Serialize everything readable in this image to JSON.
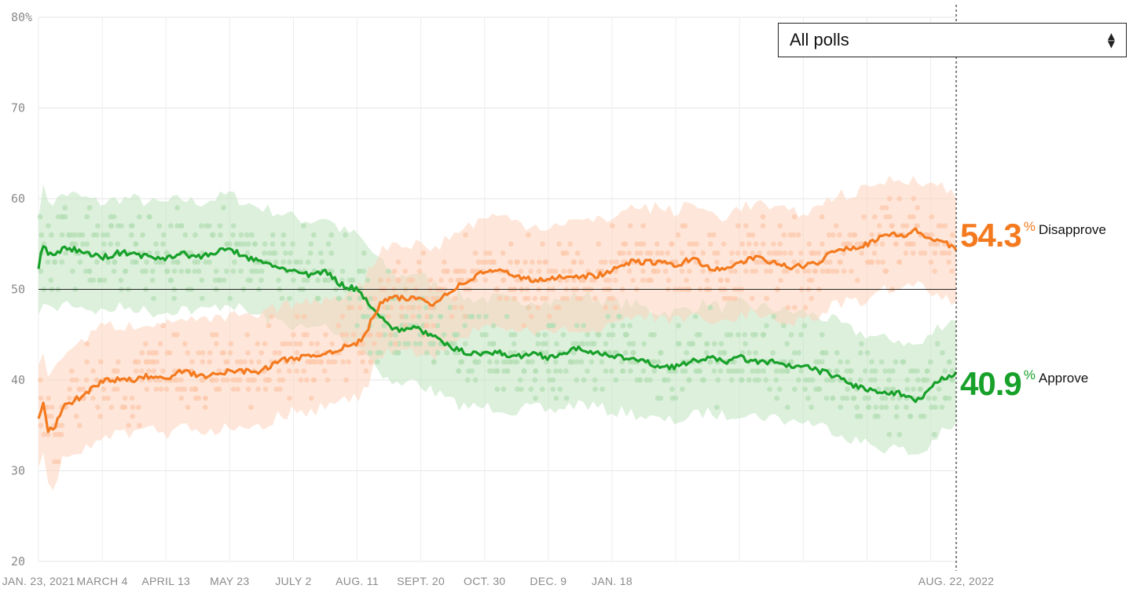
{
  "dropdown": {
    "selected": "All polls",
    "icon": "sort-arrows-icon"
  },
  "current": {
    "disapprove": {
      "value": "54.3",
      "pct_sign": "%",
      "label": "Disapprove",
      "color": "#f47a1f"
    },
    "approve": {
      "value": "40.9",
      "pct_sign": "%",
      "label": "Approve",
      "color": "#18a12a"
    }
  },
  "chart_data": {
    "type": "line",
    "title": "",
    "xlabel": "",
    "ylabel": "",
    "ylim": [
      20,
      80
    ],
    "y_ticks": [
      "80%",
      "70",
      "60",
      "50",
      "40",
      "30",
      "20"
    ],
    "y_tick_values": [
      80,
      70,
      60,
      50,
      40,
      30,
      20
    ],
    "x_ticks": [
      "JAN. 23, 2021",
      "MARCH 4",
      "APRIL 13",
      "MAY 23",
      "JULY 2",
      "AUG. 11",
      "SEPT. 20",
      "OCT. 30",
      "DEC. 9",
      "JAN. 18",
      "AUG. 22, 2022"
    ],
    "x_tick_days": [
      0,
      40,
      80,
      120,
      160,
      200,
      240,
      280,
      320,
      360,
      576
    ],
    "x_range_days": [
      0,
      576
    ],
    "reference_line": 50,
    "series": [
      {
        "name": "Approve",
        "color": "#18a12a",
        "band": 6,
        "days": [
          0,
          3,
          6,
          10,
          15,
          20,
          30,
          40,
          50,
          60,
          70,
          80,
          90,
          100,
          110,
          120,
          130,
          140,
          150,
          160,
          170,
          180,
          190,
          200,
          205,
          210,
          215,
          220,
          225,
          230,
          235,
          240,
          245,
          250,
          255,
          260,
          270,
          280,
          290,
          300,
          310,
          320,
          330,
          340,
          350,
          360,
          370,
          380,
          390,
          400,
          410,
          420,
          430,
          440,
          450,
          460,
          470,
          480,
          490,
          500,
          510,
          520,
          530,
          540,
          545,
          550,
          555,
          560,
          565,
          570,
          576
        ],
        "values": [
          52.5,
          55,
          54,
          53.5,
          54.5,
          54.5,
          54,
          53.5,
          54,
          54,
          53.5,
          53.5,
          54,
          53.5,
          54,
          54.5,
          53.5,
          53,
          52.5,
          52,
          51.5,
          52,
          50.5,
          50,
          49,
          48,
          47,
          46,
          45.5,
          45.5,
          46,
          45.5,
          45,
          44.5,
          44,
          43.5,
          43,
          43,
          43,
          42.5,
          43,
          42.5,
          43,
          43.5,
          43,
          42.5,
          42.5,
          42,
          41.5,
          41.5,
          42,
          42.5,
          42,
          42.5,
          42,
          42,
          41.5,
          41.5,
          41,
          40.5,
          39.5,
          39,
          38.5,
          38.5,
          38,
          37.8,
          38,
          39,
          40,
          40.3,
          40.9
        ]
      },
      {
        "name": "Disapprove",
        "color": "#f47a1f",
        "band": 6,
        "days": [
          0,
          3,
          6,
          10,
          15,
          20,
          30,
          40,
          50,
          60,
          70,
          80,
          90,
          100,
          110,
          120,
          130,
          140,
          150,
          160,
          170,
          180,
          190,
          200,
          205,
          210,
          215,
          220,
          225,
          230,
          235,
          240,
          245,
          250,
          255,
          260,
          270,
          280,
          290,
          300,
          310,
          320,
          330,
          340,
          350,
          360,
          370,
          380,
          390,
          400,
          410,
          420,
          430,
          440,
          450,
          460,
          470,
          480,
          490,
          500,
          510,
          520,
          530,
          540,
          545,
          550,
          555,
          560,
          565,
          570,
          576
        ],
        "values": [
          36,
          37.5,
          34.5,
          34.5,
          37,
          37.5,
          38.5,
          40,
          40,
          40,
          40.5,
          40,
          41,
          40.5,
          40.5,
          41,
          41,
          41,
          42,
          42.5,
          42.5,
          43,
          43.5,
          44,
          45,
          47,
          48.5,
          49,
          49,
          49,
          49,
          49,
          48.5,
          48.5,
          49.5,
          50,
          51,
          52,
          52,
          51.5,
          51,
          51,
          51.5,
          51.5,
          51.5,
          52,
          53,
          53,
          53,
          52.5,
          53.5,
          52.5,
          52,
          53,
          53.5,
          53,
          52.5,
          52.5,
          53,
          54.5,
          54.5,
          55,
          56,
          56,
          56,
          56.5,
          56,
          55.5,
          55.5,
          55,
          54.3
        ]
      }
    ]
  }
}
